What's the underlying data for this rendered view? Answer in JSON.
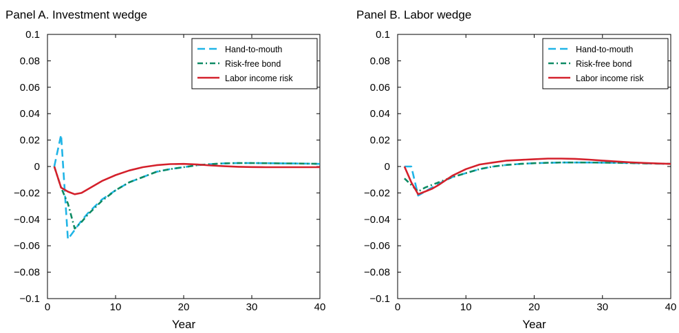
{
  "series_colors": {
    "Hand-to-mouth": "#1fb4e6",
    "Risk-free bond": "#0d8a63",
    "Labor income risk": "#d4202b"
  },
  "chart_data": [
    {
      "type": "line",
      "title": "Panel A. Investment wedge",
      "xlabel": "Year",
      "ylabel": "",
      "xlim": [
        0,
        40
      ],
      "ylim": [
        -0.1,
        0.1
      ],
      "x_ticks": [
        0,
        10,
        20,
        30,
        40
      ],
      "y_ticks": [
        -0.1,
        -0.08,
        -0.06,
        -0.04,
        -0.02,
        0,
        0.02,
        0.04,
        0.06,
        0.08,
        0.1
      ],
      "x_tick_labels": [
        "0",
        "10",
        "20",
        "30",
        "40"
      ],
      "y_tick_labels": [
        "−0.1",
        "−0.08",
        "−0.06",
        "−0.04",
        "−0.02",
        "0",
        "0.02",
        "0.04",
        "0.06",
        "0.08",
        "0.1"
      ],
      "grid": false,
      "legend_position": "top-right",
      "series": [
        {
          "name": "Hand-to-mouth",
          "style": "dashed",
          "x": [
            1,
            2,
            3,
            4,
            5,
            6,
            8,
            10,
            12,
            14,
            16,
            18,
            20,
            22,
            24,
            26,
            28,
            30,
            32,
            34,
            36,
            38,
            40
          ],
          "y": [
            0,
            0.024,
            -0.055,
            -0.048,
            -0.041,
            -0.035,
            -0.025,
            -0.018,
            -0.012,
            -0.008,
            -0.004,
            -0.002,
            -0.0005,
            0.001,
            0.0018,
            0.0024,
            0.0026,
            0.0026,
            0.0025,
            0.0024,
            0.0023,
            0.0022,
            0.002
          ]
        },
        {
          "name": "Risk-free bond",
          "style": "dashdot",
          "x": [
            1,
            2,
            3,
            4,
            5,
            6,
            8,
            10,
            12,
            14,
            16,
            18,
            20,
            22,
            24,
            26,
            28,
            30,
            32,
            34,
            36,
            38,
            40
          ],
          "y": [
            0,
            -0.016,
            -0.028,
            -0.047,
            -0.042,
            -0.036,
            -0.026,
            -0.018,
            -0.012,
            -0.008,
            -0.004,
            -0.002,
            -0.0005,
            0.001,
            0.0018,
            0.0024,
            0.0026,
            0.0026,
            0.0025,
            0.0024,
            0.0023,
            0.0022,
            0.002
          ]
        },
        {
          "name": "Labor income risk",
          "style": "solid",
          "x": [
            1,
            2,
            3,
            4,
            5,
            6,
            8,
            10,
            12,
            14,
            16,
            18,
            20,
            22,
            24,
            26,
            28,
            30,
            32,
            34,
            36,
            38,
            40
          ],
          "y": [
            0,
            -0.016,
            -0.019,
            -0.021,
            -0.02,
            -0.017,
            -0.011,
            -0.0065,
            -0.003,
            -0.0005,
            0.001,
            0.0018,
            0.002,
            0.0015,
            0.0008,
            0.0002,
            -0.0002,
            -0.0004,
            -0.0005,
            -0.0005,
            -0.0005,
            -0.0005,
            -0.0005
          ]
        }
      ]
    },
    {
      "type": "line",
      "title": "Panel B. Labor wedge",
      "xlabel": "Year",
      "ylabel": "",
      "xlim": [
        0,
        40
      ],
      "ylim": [
        -0.1,
        0.1
      ],
      "x_ticks": [
        0,
        10,
        20,
        30,
        40
      ],
      "y_ticks": [
        -0.1,
        -0.08,
        -0.06,
        -0.04,
        -0.02,
        0,
        0.02,
        0.04,
        0.06,
        0.08,
        0.1
      ],
      "x_tick_labels": [
        "0",
        "10",
        "20",
        "30",
        "40"
      ],
      "y_tick_labels": [
        "−0.1",
        "−0.08",
        "−0.06",
        "−0.04",
        "−0.02",
        "0",
        "0.02",
        "0.04",
        "0.06",
        "0.08",
        "0.1"
      ],
      "grid": false,
      "legend_position": "top-right",
      "series": [
        {
          "name": "Hand-to-mouth",
          "style": "dashed",
          "x": [
            1,
            2,
            3,
            4,
            5,
            6,
            8,
            10,
            12,
            14,
            16,
            18,
            20,
            22,
            24,
            26,
            28,
            30,
            32,
            34,
            36,
            38,
            40
          ],
          "y": [
            0,
            0,
            -0.022,
            -0.019,
            -0.016,
            -0.013,
            -0.008,
            -0.005,
            -0.002,
            0,
            0.0012,
            0.002,
            0.0025,
            0.0028,
            0.003,
            0.003,
            0.003,
            0.0029,
            0.0028,
            0.0026,
            0.0024,
            0.0022,
            0.002
          ]
        },
        {
          "name": "Risk-free bond",
          "style": "dashdot",
          "x": [
            1,
            2,
            3,
            4,
            5,
            6,
            8,
            10,
            12,
            14,
            16,
            18,
            20,
            22,
            24,
            26,
            28,
            30,
            32,
            34,
            36,
            38,
            40
          ],
          "y": [
            -0.009,
            -0.014,
            -0.019,
            -0.016,
            -0.014,
            -0.012,
            -0.008,
            -0.005,
            -0.002,
            0,
            0.0012,
            0.002,
            0.0025,
            0.0028,
            0.003,
            0.003,
            0.003,
            0.0029,
            0.0028,
            0.0026,
            0.0024,
            0.0022,
            0.002
          ]
        },
        {
          "name": "Labor income risk",
          "style": "solid",
          "x": [
            1,
            2,
            3,
            4,
            5,
            6,
            8,
            10,
            12,
            14,
            16,
            18,
            20,
            22,
            24,
            26,
            28,
            30,
            32,
            34,
            36,
            38,
            40
          ],
          "y": [
            0,
            -0.012,
            -0.021,
            -0.019,
            -0.017,
            -0.014,
            -0.007,
            -0.002,
            0.0015,
            0.003,
            0.0045,
            0.005,
            0.0055,
            0.006,
            0.006,
            0.0058,
            0.0052,
            0.0045,
            0.0038,
            0.0032,
            0.0027,
            0.0023,
            0.002
          ]
        }
      ]
    }
  ]
}
